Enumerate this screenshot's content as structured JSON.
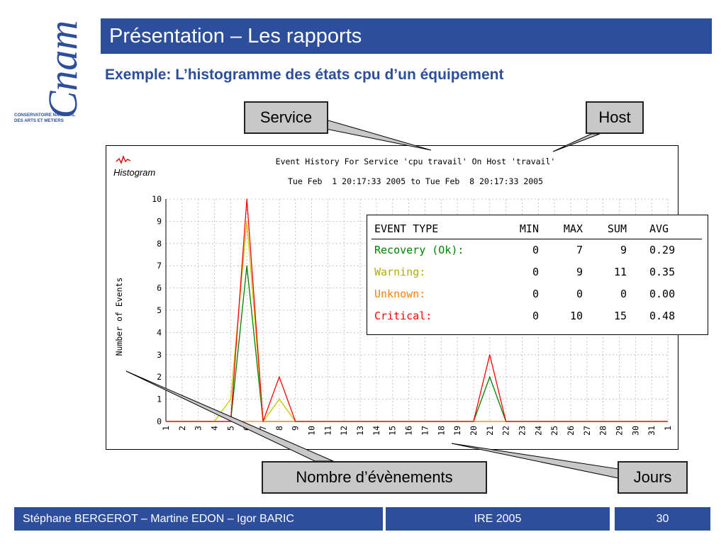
{
  "logo": {
    "brand": "Cnam",
    "line1": "CONSERVATOIRE NATIONAL",
    "line2": "DES ARTS ET METIERS"
  },
  "header": {
    "title": "Présentation – Les rapports"
  },
  "subtitle": "Exemple: L’histogramme des états cpu d’un équipement",
  "callouts": {
    "service": "Service",
    "host": "Host",
    "nombre": "Nombre d’évènements",
    "jours": "Jours"
  },
  "chart_data": {
    "type": "line",
    "icon_label": "Histogram",
    "title": "Event History For Service 'cpu travail' On Host 'travail'",
    "subtitle": "Tue Feb  1 20:17:33 2005 to Tue Feb  8 20:17:33 2005",
    "ylabel": "Number of Events",
    "xlabel": "",
    "ylim": [
      0,
      10
    ],
    "yticks": [
      0,
      1,
      2,
      3,
      4,
      5,
      6,
      7,
      8,
      9,
      10
    ],
    "categories": [
      "1",
      "2",
      "3",
      "4",
      "5",
      "6",
      "7",
      "8",
      "9",
      "10",
      "11",
      "12",
      "13",
      "14",
      "15",
      "16",
      "17",
      "18",
      "19",
      "20",
      "21",
      "22",
      "23",
      "24",
      "25",
      "26",
      "27",
      "28",
      "29",
      "30",
      "31",
      "1"
    ],
    "grid": true,
    "series": [
      {
        "name": "Recovery (Ok)",
        "color": "#008000",
        "values": [
          0,
          0,
          0,
          0,
          0,
          7,
          0,
          0,
          0,
          0,
          0,
          0,
          0,
          0,
          0,
          0,
          0,
          0,
          0,
          0,
          2,
          0,
          0,
          0,
          0,
          0,
          0,
          0,
          0,
          0,
          0,
          0
        ]
      },
      {
        "name": "Warning",
        "color": "#c8c800",
        "values": [
          0,
          0,
          0,
          0,
          1,
          9,
          0,
          1,
          0,
          0,
          0,
          0,
          0,
          0,
          0,
          0,
          0,
          0,
          0,
          0,
          0,
          0,
          0,
          0,
          0,
          0,
          0,
          0,
          0,
          0,
          0,
          0
        ]
      },
      {
        "name": "Unknown",
        "color": "#ff8000",
        "values": [
          0,
          0,
          0,
          0,
          0,
          0,
          0,
          0,
          0,
          0,
          0,
          0,
          0,
          0,
          0,
          0,
          0,
          0,
          0,
          0,
          0,
          0,
          0,
          0,
          0,
          0,
          0,
          0,
          0,
          0,
          0,
          0
        ]
      },
      {
        "name": "Critical",
        "color": "#ff0000",
        "values": [
          0,
          0,
          0,
          0,
          0,
          10,
          0,
          2,
          0,
          0,
          0,
          0,
          0,
          0,
          0,
          0,
          0,
          0,
          0,
          0,
          3,
          0,
          0,
          0,
          0,
          0,
          0,
          0,
          0,
          0,
          0,
          0
        ]
      }
    ]
  },
  "stats_table": {
    "headers": [
      "EVENT TYPE",
      "MIN",
      "MAX",
      "SUM",
      "AVG"
    ],
    "rows": [
      {
        "type": "Recovery (Ok):",
        "min": "0",
        "max": "7",
        "sum": "9",
        "avg": "0.29",
        "color": "#008000"
      },
      {
        "type": "Warning:",
        "min": "0",
        "max": "9",
        "sum": "11",
        "avg": "0.35",
        "color": "#b0b000"
      },
      {
        "type": "Unknown:",
        "min": "0",
        "max": "0",
        "sum": "0",
        "avg": "0.00",
        "color": "#ff8000"
      },
      {
        "type": "Critical:",
        "min": "0",
        "max": "10",
        "sum": "15",
        "avg": "0.48",
        "color": "#ff0000"
      }
    ]
  },
  "footer": {
    "authors": "Stéphane BERGEROT – Martine EDON – Igor BARIC",
    "event": "IRE 2005",
    "page": "30"
  },
  "colors": {
    "brand_blue": "#2c4e9b"
  }
}
